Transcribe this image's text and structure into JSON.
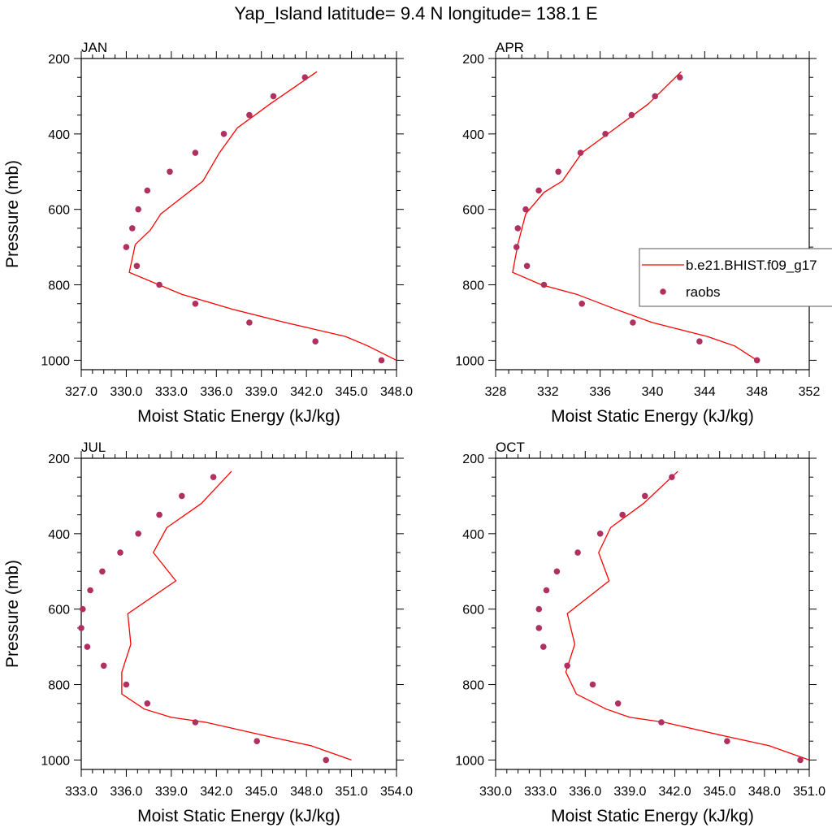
{
  "title": "Yap_Island  latitude= 9.4 N longitude= 138.1 E",
  "legend": {
    "model_label": "b.e21.BHIST.f09_g17",
    "obs_label": "raobs"
  },
  "colors": {
    "model_line": "#ff0000",
    "obs_marker": "#b03060",
    "axis": "#000000"
  },
  "chart_data": [
    {
      "type": "line",
      "panel_label": "JAN",
      "xlabel": "Moist Static Energy (kJ/kg)",
      "ylabel": "Pressure (mb)",
      "xlim": [
        327,
        348
      ],
      "ylim": [
        1025,
        200
      ],
      "xticks": [
        "327.0",
        "330.0",
        "333.0",
        "336.0",
        "339.0",
        "342.0",
        "345.0",
        "348.0"
      ],
      "yticks": [
        "200",
        "400",
        "600",
        "800",
        "1000"
      ],
      "series": [
        {
          "name": "b.e21.BHIST.f09_g17",
          "kind": "line",
          "x": [
            348.0,
            346.1,
            344.6,
            340.6,
            337.1,
            333.7,
            330.2,
            330.6,
            331.6,
            332.3,
            335.1,
            336.2,
            337.4,
            339.6,
            342.7
          ],
          "y": [
            1000,
            962,
            937,
            900,
            865,
            825,
            767,
            693,
            655,
            612,
            525,
            450,
            384,
            320,
            235
          ]
        },
        {
          "name": "raobs",
          "kind": "scatter",
          "x": [
            347.0,
            342.6,
            338.2,
            334.6,
            332.2,
            330.7,
            330.0,
            330.4,
            330.8,
            331.4,
            332.9,
            334.6,
            336.5,
            338.2,
            339.8,
            341.9
          ],
          "y": [
            1000,
            950,
            900,
            850,
            800,
            750,
            700,
            650,
            600,
            550,
            500,
            450,
            400,
            350,
            300,
            250
          ]
        }
      ]
    },
    {
      "type": "line",
      "panel_label": "APR",
      "xlabel": "Moist Static Energy (kJ/kg)",
      "ylabel": "",
      "xlim": [
        328,
        352
      ],
      "ylim": [
        1025,
        200
      ],
      "xticks": [
        "328",
        "332",
        "336",
        "340",
        "344",
        "348",
        "352"
      ],
      "yticks": [
        "200",
        "400",
        "600",
        "800",
        "1000"
      ],
      "series": [
        {
          "name": "b.e21.BHIST.f09_g17",
          "kind": "line",
          "x": [
            348.0,
            346.3,
            344.2,
            340.0,
            337.2,
            334.2,
            331.5,
            329.3,
            329.7,
            330.3,
            331.7,
            333.1,
            334.6,
            337.2,
            339.7,
            342.2
          ],
          "y": [
            1000,
            962,
            937,
            900,
            865,
            825,
            800,
            767,
            693,
            612,
            555,
            525,
            450,
            384,
            320,
            235
          ]
        },
        {
          "name": "raobs",
          "kind": "scatter",
          "x": [
            348.0,
            343.6,
            338.5,
            334.6,
            331.7,
            330.4,
            329.6,
            329.7,
            330.3,
            331.3,
            332.8,
            334.5,
            336.4,
            338.4,
            340.2,
            342.1
          ],
          "y": [
            1000,
            950,
            900,
            850,
            800,
            750,
            700,
            650,
            600,
            550,
            500,
            450,
            400,
            350,
            300,
            250
          ]
        }
      ]
    },
    {
      "type": "line",
      "panel_label": "JUL",
      "xlabel": "Moist Static Energy (kJ/kg)",
      "ylabel": "Pressure (mb)",
      "xlim": [
        333,
        354
      ],
      "ylim": [
        1025,
        200
      ],
      "xticks": [
        "333.0",
        "336.0",
        "339.0",
        "342.0",
        "345.0",
        "348.0",
        "351.0",
        "354.0"
      ],
      "yticks": [
        "200",
        "400",
        "600",
        "800",
        "1000"
      ],
      "series": [
        {
          "name": "b.e21.BHIST.f09_g17",
          "kind": "line",
          "x": [
            351.0,
            348.3,
            345.4,
            341.3,
            339.0,
            337.2,
            335.7,
            335.7,
            336.3,
            336.1,
            339.3,
            337.8,
            338.7,
            341.0,
            343.0
          ],
          "y": [
            1000,
            962,
            937,
            900,
            887,
            865,
            825,
            767,
            693,
            612,
            525,
            450,
            384,
            320,
            235
          ]
        },
        {
          "name": "raobs",
          "kind": "scatter",
          "x": [
            349.3,
            344.7,
            340.6,
            337.4,
            336.0,
            334.5,
            333.4,
            333.0,
            333.1,
            333.6,
            334.4,
            335.6,
            336.8,
            338.2,
            339.7,
            341.8
          ],
          "y": [
            1000,
            950,
            900,
            850,
            800,
            750,
            700,
            650,
            600,
            550,
            500,
            450,
            400,
            350,
            300,
            250
          ]
        }
      ]
    },
    {
      "type": "line",
      "panel_label": "OCT",
      "xlabel": "Moist Static Energy (kJ/kg)",
      "ylabel": "",
      "xlim": [
        330,
        351
      ],
      "ylim": [
        1025,
        200
      ],
      "xticks": [
        "330.0",
        "333.0",
        "336.0",
        "339.0",
        "342.0",
        "345.0",
        "348.0",
        "351.0"
      ],
      "yticks": [
        "200",
        "400",
        "600",
        "800",
        "1000"
      ],
      "series": [
        {
          "name": "b.e21.BHIST.f09_g17",
          "kind": "line",
          "x": [
            351.0,
            348.3,
            345.4,
            341.3,
            339.0,
            337.4,
            335.4,
            334.7,
            335.3,
            334.8,
            337.6,
            336.9,
            337.7,
            339.9,
            342.2
          ],
          "y": [
            1000,
            962,
            937,
            900,
            887,
            865,
            825,
            767,
            693,
            612,
            525,
            450,
            384,
            320,
            235
          ]
        },
        {
          "name": "raobs",
          "kind": "scatter",
          "x": [
            350.4,
            345.5,
            341.1,
            338.2,
            336.5,
            334.8,
            333.2,
            332.9,
            332.9,
            333.4,
            334.1,
            335.5,
            337.0,
            338.5,
            340.0,
            341.8
          ],
          "y": [
            1000,
            950,
            900,
            850,
            800,
            750,
            700,
            650,
            600,
            550,
            500,
            450,
            400,
            350,
            300,
            250
          ]
        }
      ]
    }
  ]
}
